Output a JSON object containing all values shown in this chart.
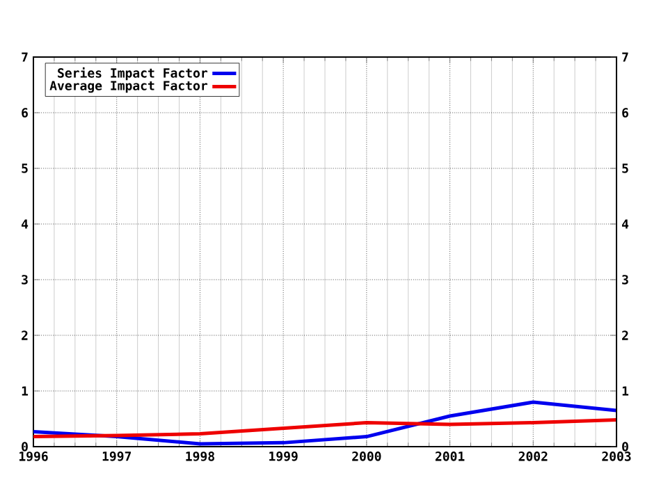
{
  "chart_data": {
    "type": "line",
    "x": [
      1996,
      1997,
      1998,
      1999,
      2000,
      2001,
      2002,
      2003
    ],
    "series": [
      {
        "name": "Series Impact Factor",
        "color": "#0000ee",
        "values": [
          0.27,
          0.18,
          0.05,
          0.07,
          0.18,
          0.55,
          0.8,
          0.65
        ]
      },
      {
        "name": "Average Impact Factor",
        "color": "#ee0000",
        "values": [
          0.18,
          0.2,
          0.23,
          0.33,
          0.43,
          0.4,
          0.43,
          0.48
        ]
      }
    ],
    "xlim": [
      1996,
      2003
    ],
    "xticks": [
      1996,
      1997,
      1998,
      1999,
      2000,
      2001,
      2002,
      2003
    ],
    "ylim": [
      0,
      7
    ],
    "yticks": [
      0,
      1,
      2,
      3,
      4,
      5,
      6,
      7
    ],
    "y2lim": [
      0,
      7
    ],
    "y2ticks": [
      0,
      1,
      2,
      3,
      4,
      5,
      6,
      7
    ],
    "grid": true,
    "legend": "top left",
    "marker": "none",
    "line_style": "solid"
  }
}
